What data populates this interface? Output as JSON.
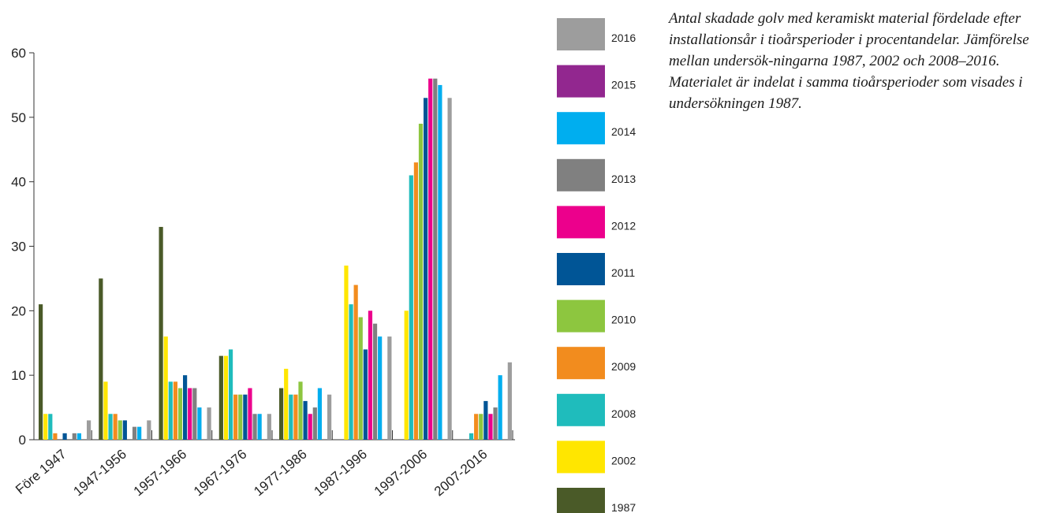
{
  "caption": "Antal skadade golv med keramiskt material fördelade efter installationsår i tioårsperioder i procentandelar. Jämförelse mellan undersök-ningarna 1987, 2002 och 2008–2016. Materialet är indelat i samma tioårsperioder som visades i undersökningen 1987.",
  "chart_data": {
    "type": "bar",
    "title": "",
    "xlabel": "",
    "ylabel": "",
    "ylim": [
      0,
      60
    ],
    "yticks": [
      0,
      10,
      20,
      30,
      40,
      50,
      60
    ],
    "grid": false,
    "legend_position": "right",
    "categories": [
      "Före 1947",
      "1947-1956",
      "1957-1966",
      "1967-1976",
      "1977-1986",
      "1987-1996",
      "1997-2006",
      "2007-2016"
    ],
    "series": [
      {
        "name": "1987",
        "color": "#4a5a28",
        "values": [
          21,
          25,
          33,
          13,
          8,
          0,
          0,
          0
        ]
      },
      {
        "name": "2002",
        "color": "#ffe600",
        "values": [
          4,
          9,
          16,
          13,
          11,
          27,
          20,
          0
        ]
      },
      {
        "name": "2008",
        "color": "#1fbcbc",
        "values": [
          4,
          4,
          9,
          14,
          7,
          21,
          41,
          1
        ]
      },
      {
        "name": "2009",
        "color": "#f28c1e",
        "values": [
          1,
          4,
          9,
          7,
          7,
          24,
          43,
          4
        ]
      },
      {
        "name": "2010",
        "color": "#8dc63f",
        "values": [
          0,
          3,
          8,
          7,
          9,
          19,
          49,
          4
        ]
      },
      {
        "name": "2011",
        "color": "#005596",
        "values": [
          1,
          3,
          10,
          7,
          6,
          14,
          53,
          6
        ]
      },
      {
        "name": "2012",
        "color": "#ec008c",
        "values": [
          0,
          0,
          8,
          8,
          4,
          20,
          56,
          4
        ]
      },
      {
        "name": "2013",
        "color": "#808080",
        "values": [
          1,
          2,
          8,
          4,
          5,
          18,
          56,
          5
        ]
      },
      {
        "name": "2014",
        "color": "#00aeef",
        "values": [
          1,
          2,
          5,
          4,
          8,
          16,
          55,
          10
        ]
      },
      {
        "name": "2015",
        "color": "#92278f",
        "values": [
          0,
          0,
          0,
          0,
          0,
          0,
          0,
          0
        ]
      },
      {
        "name": "2016",
        "color": "#9d9d9d",
        "values": [
          3,
          3,
          5,
          4,
          7,
          16,
          53,
          12
        ]
      }
    ],
    "legend_order": [
      "2016",
      "2015",
      "2014",
      "2013",
      "2012",
      "2011",
      "2010",
      "2009",
      "2008",
      "2002",
      "1987"
    ]
  }
}
